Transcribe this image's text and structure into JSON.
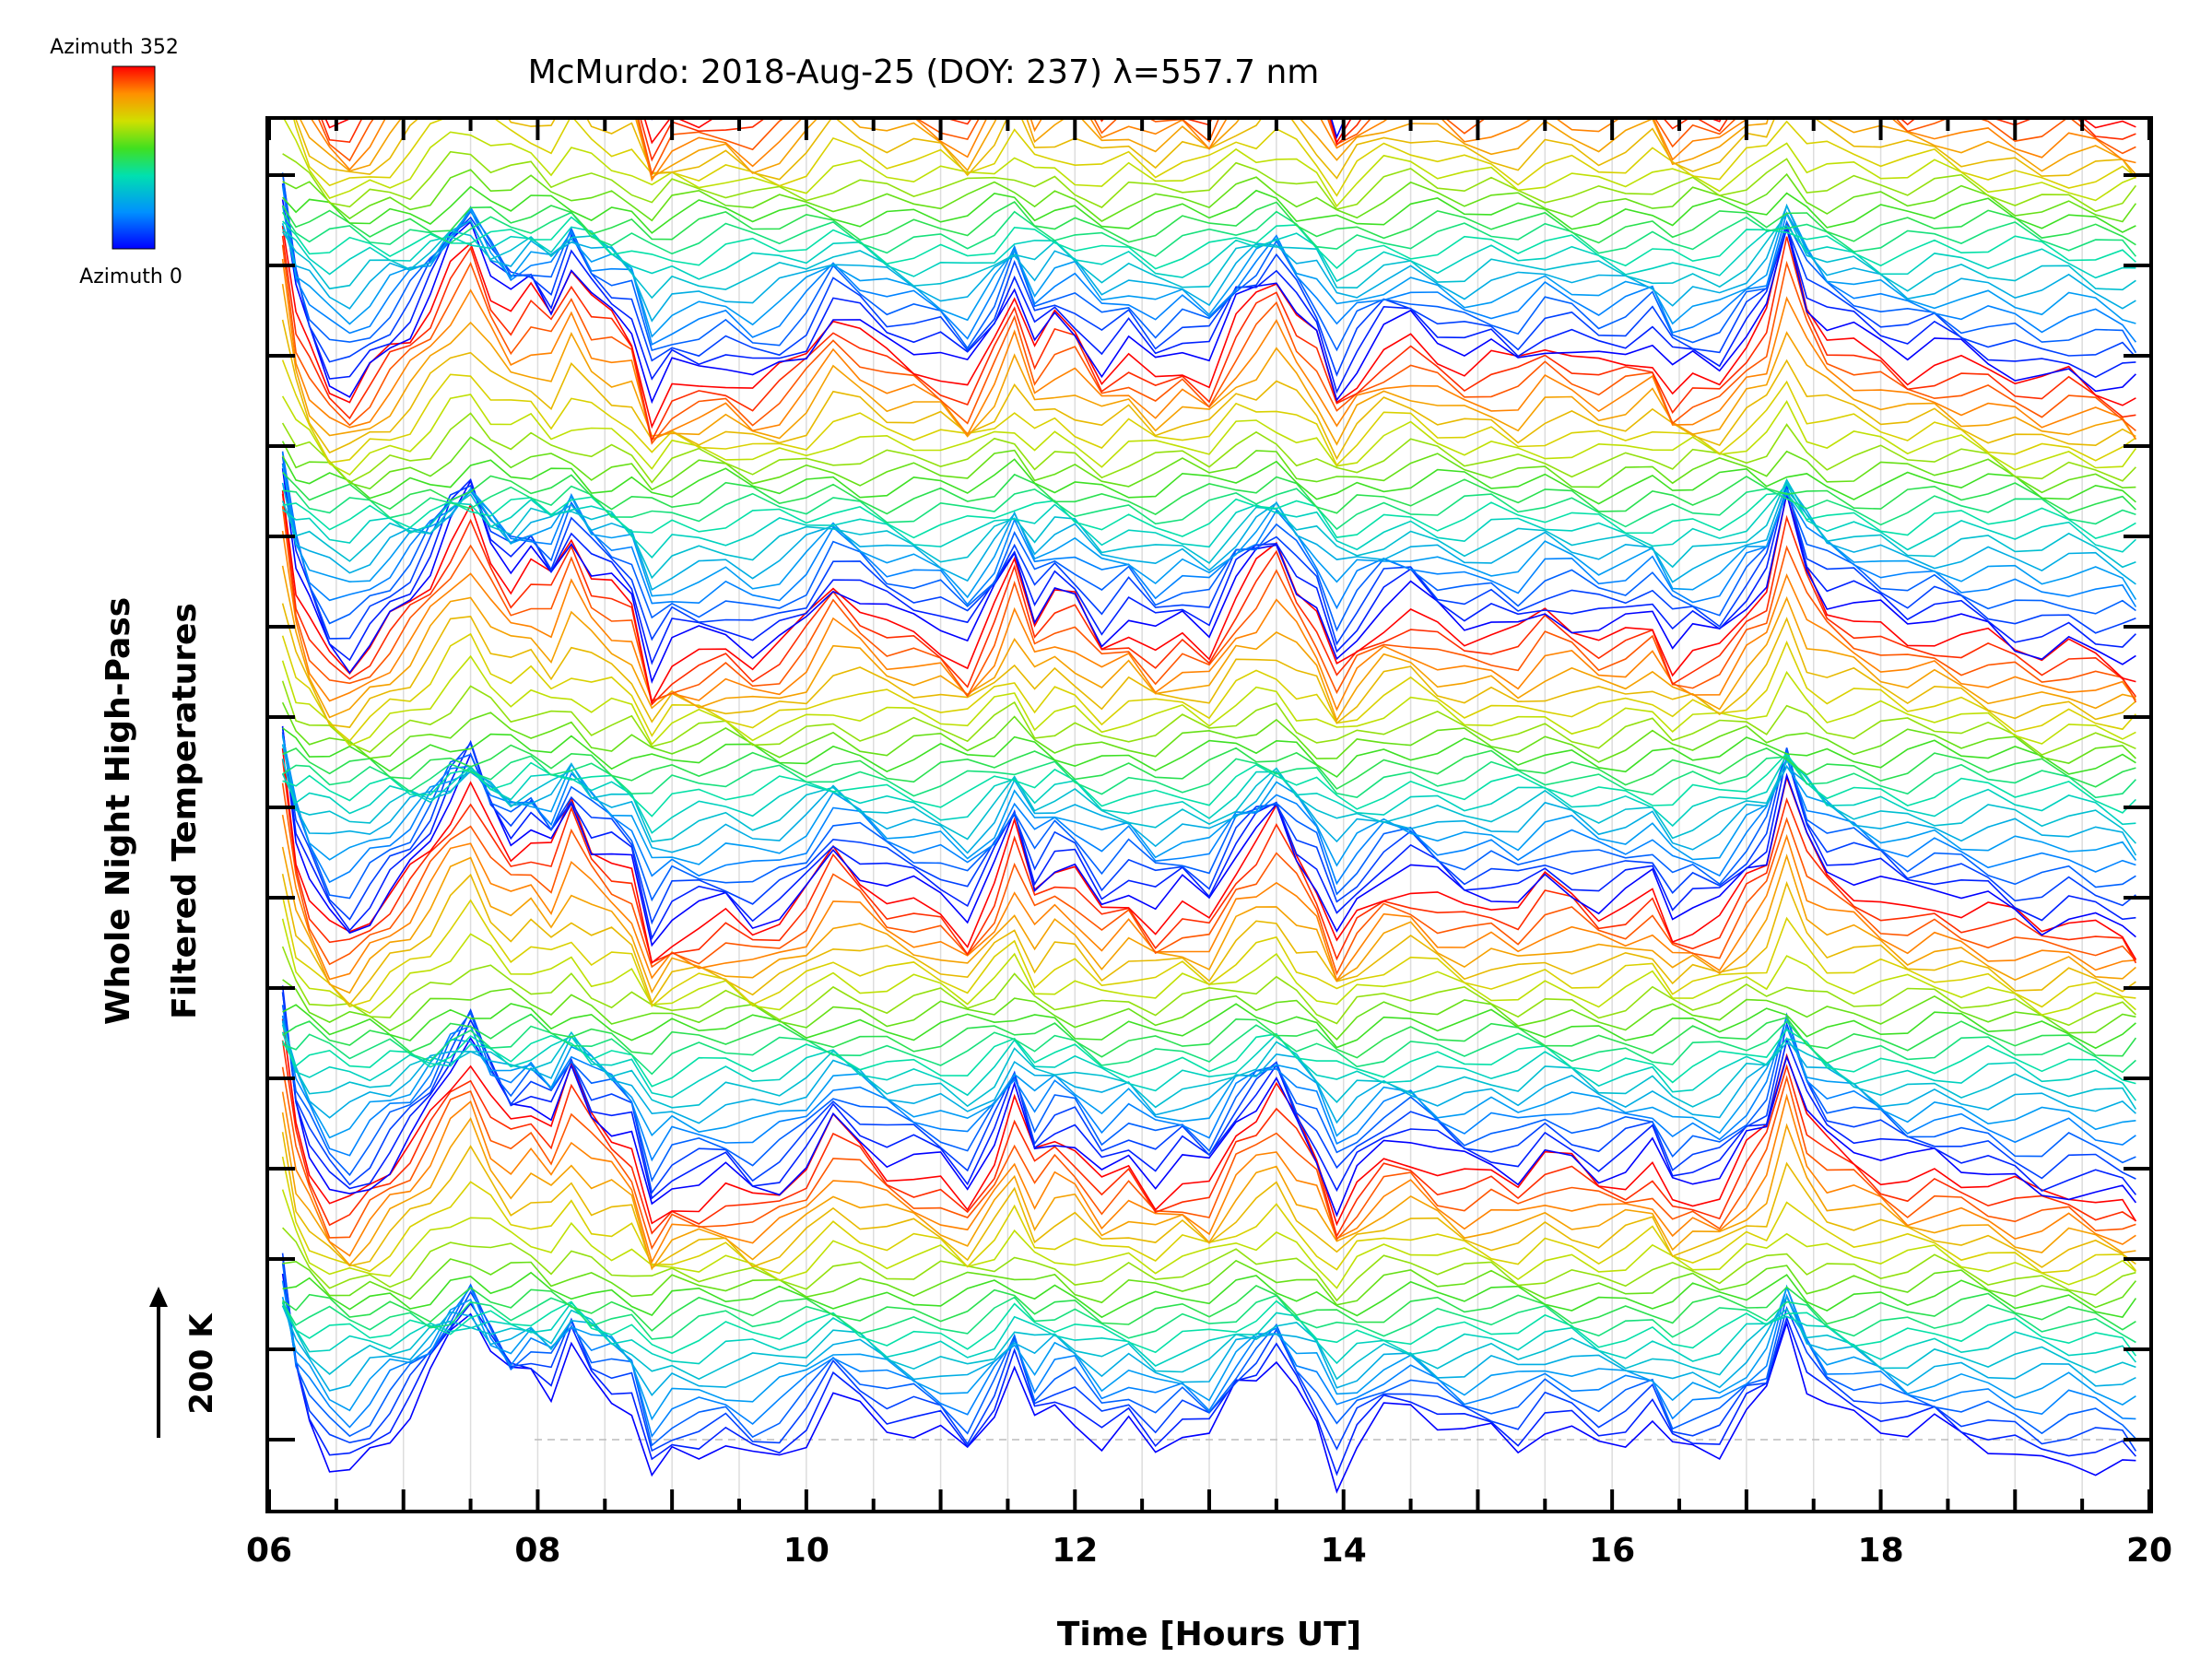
{
  "chart_data": {
    "type": "line",
    "title": "McMurdo: 2018-Aug-25 (DOY: 237) λ=557.7 nm",
    "xlabel": "Time [Hours UT]",
    "ylabel_line1": "Whole Night High-Pass",
    "ylabel_line2": "Filtered Temperatures",
    "xlim": [
      6,
      20
    ],
    "x_ticks": [
      "06",
      "08",
      "10",
      "12",
      "14",
      "16",
      "18",
      "20"
    ],
    "scale_label": "200 K",
    "colorbar": {
      "top_label": "Azimuth 352",
      "bottom_label": "Azimuth 0"
    },
    "azimuth_min": 0,
    "azimuth_max": 352,
    "azimuth_step": 16,
    "groups": 6,
    "group_spacing_ticks": 3,
    "time_points": [
      6.1,
      6.2,
      6.3,
      6.45,
      6.6,
      6.75,
      6.9,
      7.05,
      7.2,
      7.35,
      7.5,
      7.65,
      7.8,
      7.95,
      8.1,
      8.25,
      8.4,
      8.55,
      8.7,
      8.85,
      9.0,
      9.2,
      9.4,
      9.6,
      9.8,
      10.0,
      10.2,
      10.4,
      10.6,
      10.8,
      11.0,
      11.2,
      11.4,
      11.55,
      11.7,
      11.85,
      12.0,
      12.2,
      12.4,
      12.6,
      12.8,
      13.0,
      13.2,
      13.35,
      13.5,
      13.65,
      13.8,
      13.95,
      14.1,
      14.3,
      14.5,
      14.7,
      14.9,
      15.1,
      15.3,
      15.5,
      15.7,
      15.9,
      16.1,
      16.3,
      16.45,
      16.6,
      16.8,
      17.0,
      17.15,
      17.3,
      17.45,
      17.6,
      17.8,
      18.0,
      18.2,
      18.4,
      18.6,
      18.8,
      19.0,
      19.2,
      19.4,
      19.6,
      19.8,
      19.9
    ],
    "common_signal_K": [
      320,
      120,
      40,
      -40,
      -60,
      -20,
      20,
      60,
      120,
      200,
      260,
      170,
      120,
      150,
      110,
      200,
      120,
      90,
      60,
      -100,
      -40,
      -30,
      -10,
      -40,
      -20,
      20,
      100,
      60,
      20,
      10,
      0,
      -40,
      60,
      160,
      40,
      80,
      60,
      -20,
      20,
      -30,
      10,
      -10,
      100,
      140,
      180,
      100,
      40,
      -80,
      -20,
      40,
      60,
      30,
      10,
      20,
      0,
      40,
      20,
      -10,
      0,
      30,
      -40,
      -20,
      -20,
      60,
      100,
      260,
      120,
      60,
      40,
      20,
      0,
      20,
      10,
      0,
      -20,
      -40,
      -30,
      -50,
      -60,
      -70
    ]
  }
}
